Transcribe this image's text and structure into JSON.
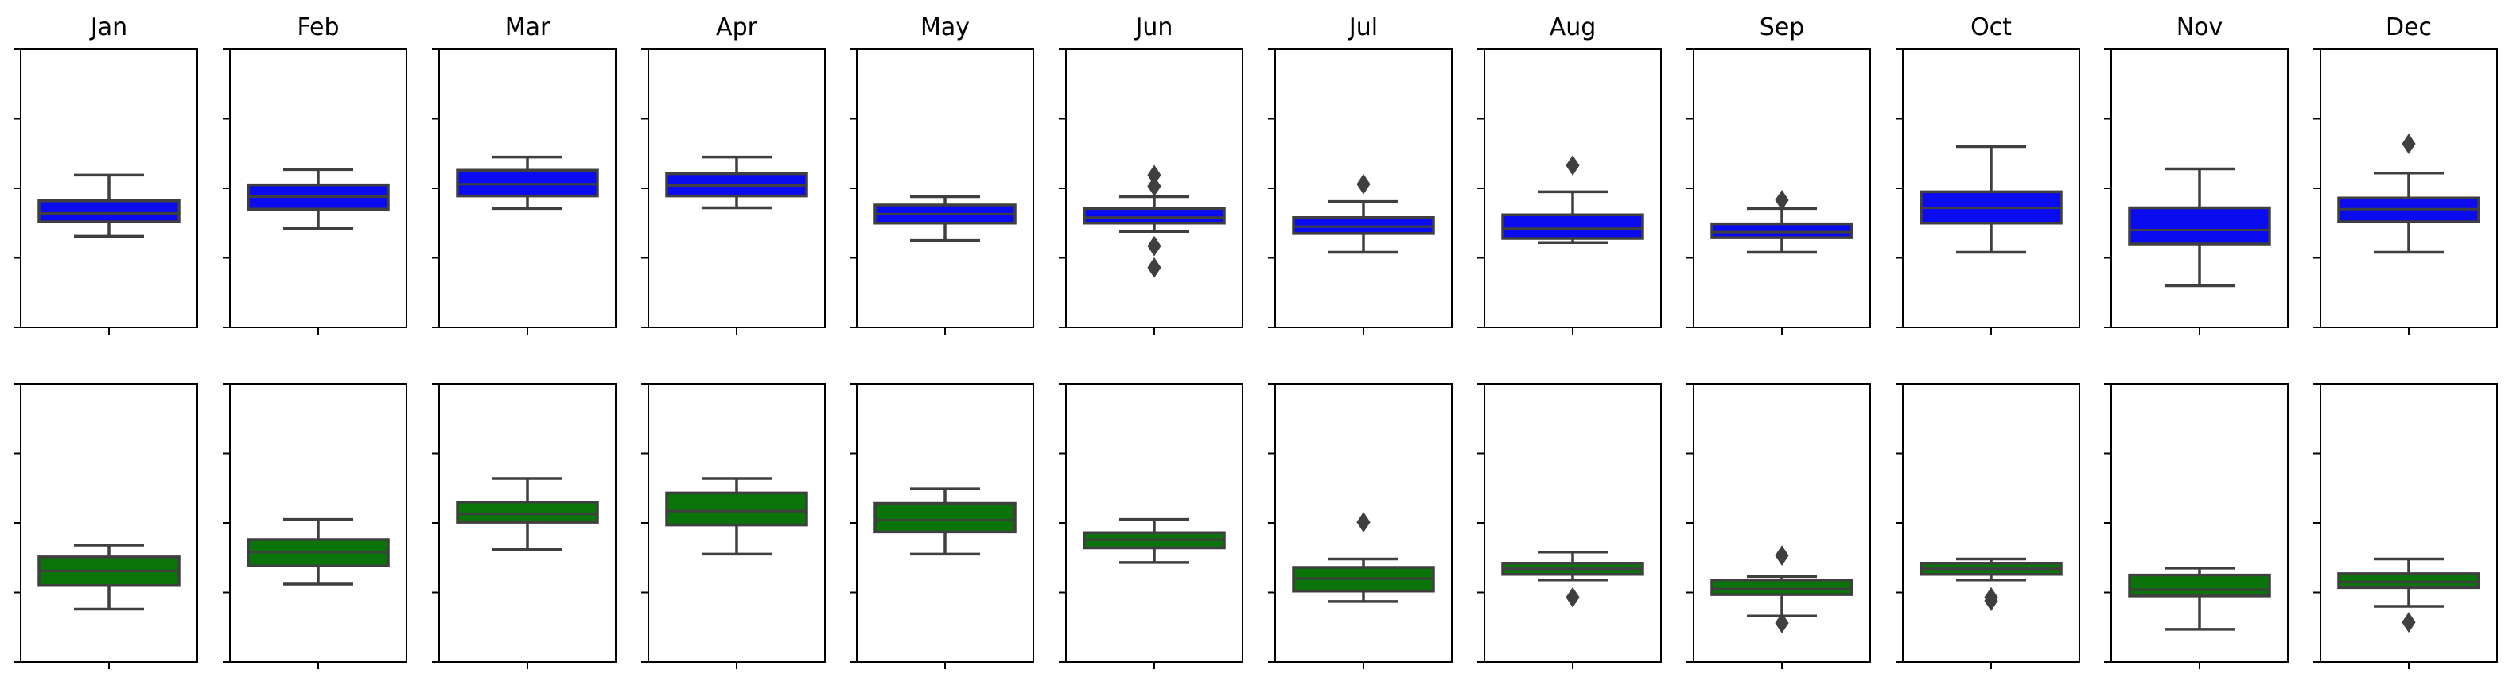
{
  "chart_data": {
    "type": "box",
    "months": [
      "Jan",
      "Feb",
      "Mar",
      "Apr",
      "May",
      "Jun",
      "Jul",
      "Aug",
      "Sep",
      "Oct",
      "Nov",
      "Dec"
    ],
    "yscale": [
      0,
      4
    ],
    "grid": false,
    "tick_labels_shown": false,
    "rows": [
      {
        "color": "#0b0bf0",
        "boxes": [
          {
            "whislo": 1.31,
            "q1": 1.52,
            "med": 1.64,
            "q3": 1.82,
            "whishi": 2.19,
            "fliers": []
          },
          {
            "whislo": 1.42,
            "q1": 1.7,
            "med": 1.88,
            "q3": 2.05,
            "whishi": 2.27,
            "fliers": []
          },
          {
            "whislo": 1.71,
            "q1": 1.89,
            "med": 2.06,
            "q3": 2.26,
            "whishi": 2.45,
            "fliers": []
          },
          {
            "whislo": 1.72,
            "q1": 1.89,
            "med": 2.04,
            "q3": 2.21,
            "whishi": 2.45,
            "fliers": []
          },
          {
            "whislo": 1.25,
            "q1": 1.5,
            "med": 1.63,
            "q3": 1.76,
            "whishi": 1.88,
            "fliers": []
          },
          {
            "whislo": 1.38,
            "q1": 1.5,
            "med": 1.58,
            "q3": 1.71,
            "whishi": 1.88,
            "fliers": [
              2.19,
              2.03,
              1.17,
              0.86
            ]
          },
          {
            "whislo": 1.08,
            "q1": 1.35,
            "med": 1.45,
            "q3": 1.58,
            "whishi": 1.81,
            "fliers": [
              2.06
            ]
          },
          {
            "whislo": 1.22,
            "q1": 1.28,
            "med": 1.42,
            "q3": 1.62,
            "whishi": 1.95,
            "fliers": [
              2.33
            ]
          },
          {
            "whislo": 1.08,
            "q1": 1.29,
            "med": 1.37,
            "q3": 1.49,
            "whishi": 1.71,
            "fliers": [
              1.83
            ]
          },
          {
            "whislo": 1.08,
            "q1": 1.5,
            "med": 1.72,
            "q3": 1.95,
            "whishi": 2.6,
            "fliers": []
          },
          {
            "whislo": 0.6,
            "q1": 1.2,
            "med": 1.4,
            "q3": 1.72,
            "whishi": 2.28,
            "fliers": []
          },
          {
            "whislo": 1.08,
            "q1": 1.52,
            "med": 1.7,
            "q3": 1.86,
            "whishi": 2.22,
            "fliers": [
              2.64
            ]
          }
        ]
      },
      {
        "color": "#0a730a",
        "boxes": [
          {
            "whislo": 0.76,
            "q1": 1.1,
            "med": 1.31,
            "q3": 1.51,
            "whishi": 1.68,
            "fliers": []
          },
          {
            "whislo": 1.12,
            "q1": 1.38,
            "med": 1.58,
            "q3": 1.76,
            "whishi": 2.05,
            "fliers": []
          },
          {
            "whislo": 1.62,
            "q1": 2.01,
            "med": 2.13,
            "q3": 2.3,
            "whishi": 2.64,
            "fliers": []
          },
          {
            "whislo": 1.55,
            "q1": 1.97,
            "med": 2.17,
            "q3": 2.43,
            "whishi": 2.64,
            "fliers": []
          },
          {
            "whislo": 1.55,
            "q1": 1.87,
            "med": 2.04,
            "q3": 2.28,
            "whishi": 2.49,
            "fliers": []
          },
          {
            "whislo": 1.43,
            "q1": 1.64,
            "med": 1.76,
            "q3": 1.86,
            "whishi": 2.05,
            "fliers": []
          },
          {
            "whislo": 0.87,
            "q1": 1.02,
            "med": 1.2,
            "q3": 1.36,
            "whishi": 1.48,
            "fliers": [
              2.01
            ]
          },
          {
            "whislo": 1.18,
            "q1": 1.26,
            "med": 1.34,
            "q3": 1.42,
            "whishi": 1.58,
            "fliers": [
              0.93
            ]
          },
          {
            "whislo": 0.66,
            "q1": 0.97,
            "med": 1.05,
            "q3": 1.18,
            "whishi": 1.23,
            "fliers": [
              1.53,
              0.56
            ]
          },
          {
            "whislo": 1.18,
            "q1": 1.26,
            "med": 1.34,
            "q3": 1.42,
            "whishi": 1.48,
            "fliers": [
              0.93,
              0.88
            ]
          },
          {
            "whislo": 0.47,
            "q1": 0.95,
            "med": 1.04,
            "q3": 1.25,
            "whishi": 1.35,
            "fliers": []
          },
          {
            "whislo": 0.8,
            "q1": 1.07,
            "med": 1.15,
            "q3": 1.27,
            "whishi": 1.48,
            "fliers": [
              0.57
            ]
          }
        ]
      }
    ]
  }
}
